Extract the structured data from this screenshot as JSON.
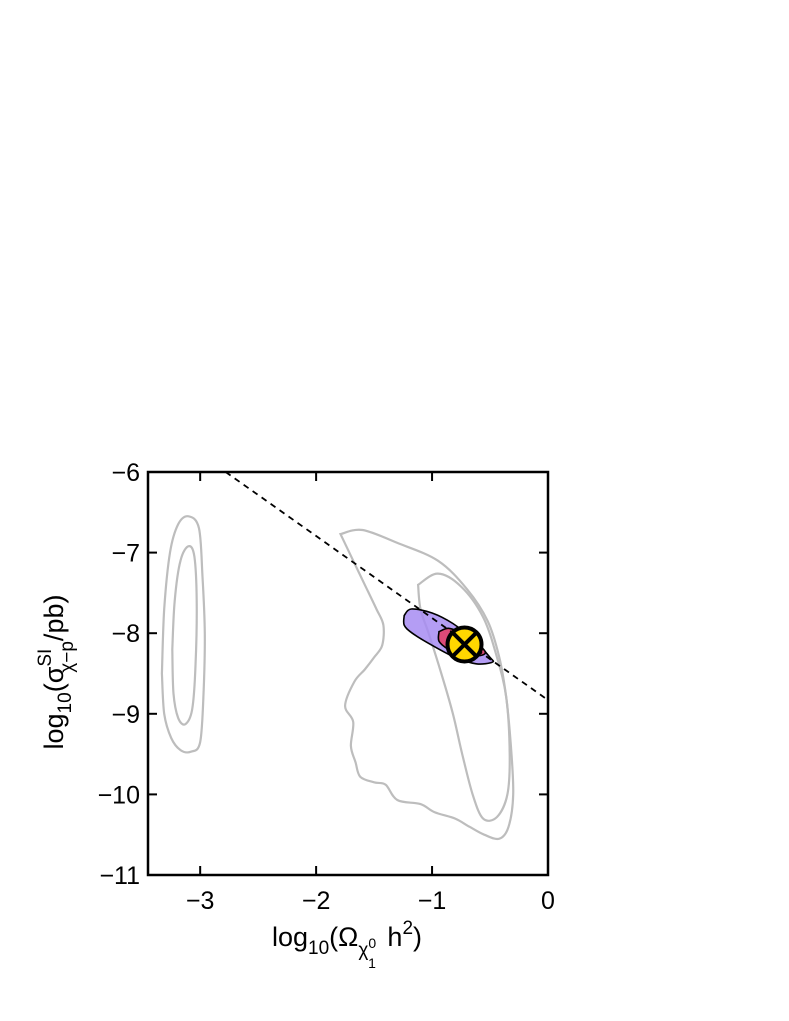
{
  "chart_data": {
    "type": "contour",
    "xlabel": {
      "prefix": "log",
      "prefix_subscript": "10",
      "open": "(",
      "symbol": "Ω",
      "symbol_subscript": "χ",
      "symbol_subscript_superscript": "0",
      "symbol_subscript_subscript": "1",
      "middle": " h",
      "middle_superscript": "2",
      "close": ")"
    },
    "ylabel": {
      "prefix": "log",
      "prefix_subscript": "10",
      "open": "(σ",
      "symbol_superscript": "SI",
      "symbol_subscript": "χ−p",
      "close": "/pb)"
    },
    "xlim": [
      -3.45,
      0
    ],
    "ylim": [
      -11,
      -6
    ],
    "xticks": [
      {
        "value": -3,
        "label": "−3"
      },
      {
        "value": -2,
        "label": "−2"
      },
      {
        "value": -1,
        "label": "−1"
      },
      {
        "value": 0,
        "label": "0"
      }
    ],
    "yticks": [
      {
        "value": -6,
        "label": "−6"
      },
      {
        "value": -7,
        "label": "−7"
      },
      {
        "value": -8,
        "label": "−8"
      },
      {
        "value": -9,
        "label": "−9"
      },
      {
        "value": -10,
        "label": "−10"
      },
      {
        "value": -11,
        "label": "−11"
      }
    ],
    "grid": false,
    "colors": {
      "outer_contour": "#bdbdbd",
      "inner_fill": "#a78cf2",
      "core_fill": "#e0416a",
      "marker_fill": "#ffd700",
      "line": "#000000"
    },
    "contours": [
      {
        "region": "left-outer",
        "points": [
          [
            -3.33,
            -8.5
          ],
          [
            -3.31,
            -7.7
          ],
          [
            -3.26,
            -7.0
          ],
          [
            -3.19,
            -6.65
          ],
          [
            -3.1,
            -6.55
          ],
          [
            -3.01,
            -6.7
          ],
          [
            -2.98,
            -7.3
          ],
          [
            -2.96,
            -8.0
          ],
          [
            -2.97,
            -8.7
          ],
          [
            -3.0,
            -9.35
          ],
          [
            -3.08,
            -9.47
          ],
          [
            -3.17,
            -9.45
          ],
          [
            -3.25,
            -9.3
          ],
          [
            -3.31,
            -9.0
          ],
          [
            -3.33,
            -8.5
          ]
        ]
      },
      {
        "region": "left-inner",
        "points": [
          [
            -3.24,
            -8.2
          ],
          [
            -3.22,
            -7.6
          ],
          [
            -3.17,
            -7.1
          ],
          [
            -3.1,
            -6.92
          ],
          [
            -3.05,
            -7.05
          ],
          [
            -3.03,
            -7.6
          ],
          [
            -3.04,
            -8.4
          ],
          [
            -3.07,
            -8.95
          ],
          [
            -3.13,
            -9.13
          ],
          [
            -3.19,
            -9.05
          ],
          [
            -3.23,
            -8.75
          ],
          [
            -3.24,
            -8.2
          ]
        ]
      },
      {
        "region": "main-outer",
        "points": [
          [
            -1.79,
            -6.77
          ],
          [
            -1.6,
            -6.72
          ],
          [
            -1.3,
            -6.88
          ],
          [
            -0.95,
            -7.1
          ],
          [
            -0.7,
            -7.45
          ],
          [
            -0.52,
            -7.85
          ],
          [
            -0.42,
            -8.3
          ],
          [
            -0.36,
            -8.8
          ],
          [
            -0.32,
            -9.4
          ],
          [
            -0.3,
            -10.0
          ],
          [
            -0.34,
            -10.4
          ],
          [
            -0.42,
            -10.55
          ],
          [
            -0.55,
            -10.5
          ],
          [
            -0.68,
            -10.4
          ],
          [
            -0.8,
            -10.3
          ],
          [
            -0.98,
            -10.22
          ],
          [
            -1.1,
            -10.12
          ],
          [
            -1.3,
            -10.07
          ],
          [
            -1.4,
            -9.88
          ],
          [
            -1.5,
            -9.85
          ],
          [
            -1.62,
            -9.78
          ],
          [
            -1.66,
            -9.6
          ],
          [
            -1.7,
            -9.4
          ],
          [
            -1.68,
            -9.1
          ],
          [
            -1.75,
            -8.9
          ],
          [
            -1.67,
            -8.6
          ],
          [
            -1.58,
            -8.45
          ],
          [
            -1.5,
            -8.3
          ],
          [
            -1.43,
            -8.15
          ],
          [
            -1.42,
            -7.9
          ],
          [
            -1.48,
            -7.7
          ],
          [
            -1.58,
            -7.4
          ],
          [
            -1.68,
            -7.1
          ],
          [
            -1.79,
            -6.77
          ]
        ]
      },
      {
        "region": "main-inner",
        "points": [
          [
            -1.12,
            -7.4
          ],
          [
            -0.95,
            -7.26
          ],
          [
            -0.75,
            -7.42
          ],
          [
            -0.56,
            -7.8
          ],
          [
            -0.44,
            -8.3
          ],
          [
            -0.36,
            -8.8
          ],
          [
            -0.33,
            -9.5
          ],
          [
            -0.35,
            -10.0
          ],
          [
            -0.44,
            -10.28
          ],
          [
            -0.56,
            -10.3
          ],
          [
            -0.65,
            -10.0
          ],
          [
            -0.74,
            -9.5
          ],
          [
            -0.82,
            -9.0
          ],
          [
            -0.92,
            -8.5
          ],
          [
            -1.03,
            -8.0
          ],
          [
            -1.1,
            -7.7
          ],
          [
            -1.12,
            -7.4
          ]
        ]
      }
    ],
    "filled_regions": [
      {
        "level": "68%",
        "points": [
          [
            -1.24,
            -7.78
          ],
          [
            -1.18,
            -7.7
          ],
          [
            -1.0,
            -7.75
          ],
          [
            -0.82,
            -7.88
          ],
          [
            -0.64,
            -8.08
          ],
          [
            -0.5,
            -8.3
          ],
          [
            -0.48,
            -8.36
          ],
          [
            -0.62,
            -8.38
          ],
          [
            -0.8,
            -8.3
          ],
          [
            -1.0,
            -8.15
          ],
          [
            -1.17,
            -8.0
          ],
          [
            -1.24,
            -7.9
          ],
          [
            -1.24,
            -7.78
          ]
        ]
      },
      {
        "level": "core",
        "points": [
          [
            -0.94,
            -7.98
          ],
          [
            -0.85,
            -7.94
          ],
          [
            -0.72,
            -8.02
          ],
          [
            -0.6,
            -8.14
          ],
          [
            -0.54,
            -8.24
          ],
          [
            -0.6,
            -8.28
          ],
          [
            -0.74,
            -8.27
          ],
          [
            -0.86,
            -8.2
          ],
          [
            -0.94,
            -8.1
          ],
          [
            -0.94,
            -7.98
          ]
        ]
      }
    ],
    "dashed_line": {
      "points": [
        [
          -2.78,
          -6.0
        ],
        [
          0.0,
          -8.83
        ]
      ]
    },
    "best_fit": {
      "x": -0.72,
      "y": -8.14,
      "marker": "circle-x"
    }
  }
}
